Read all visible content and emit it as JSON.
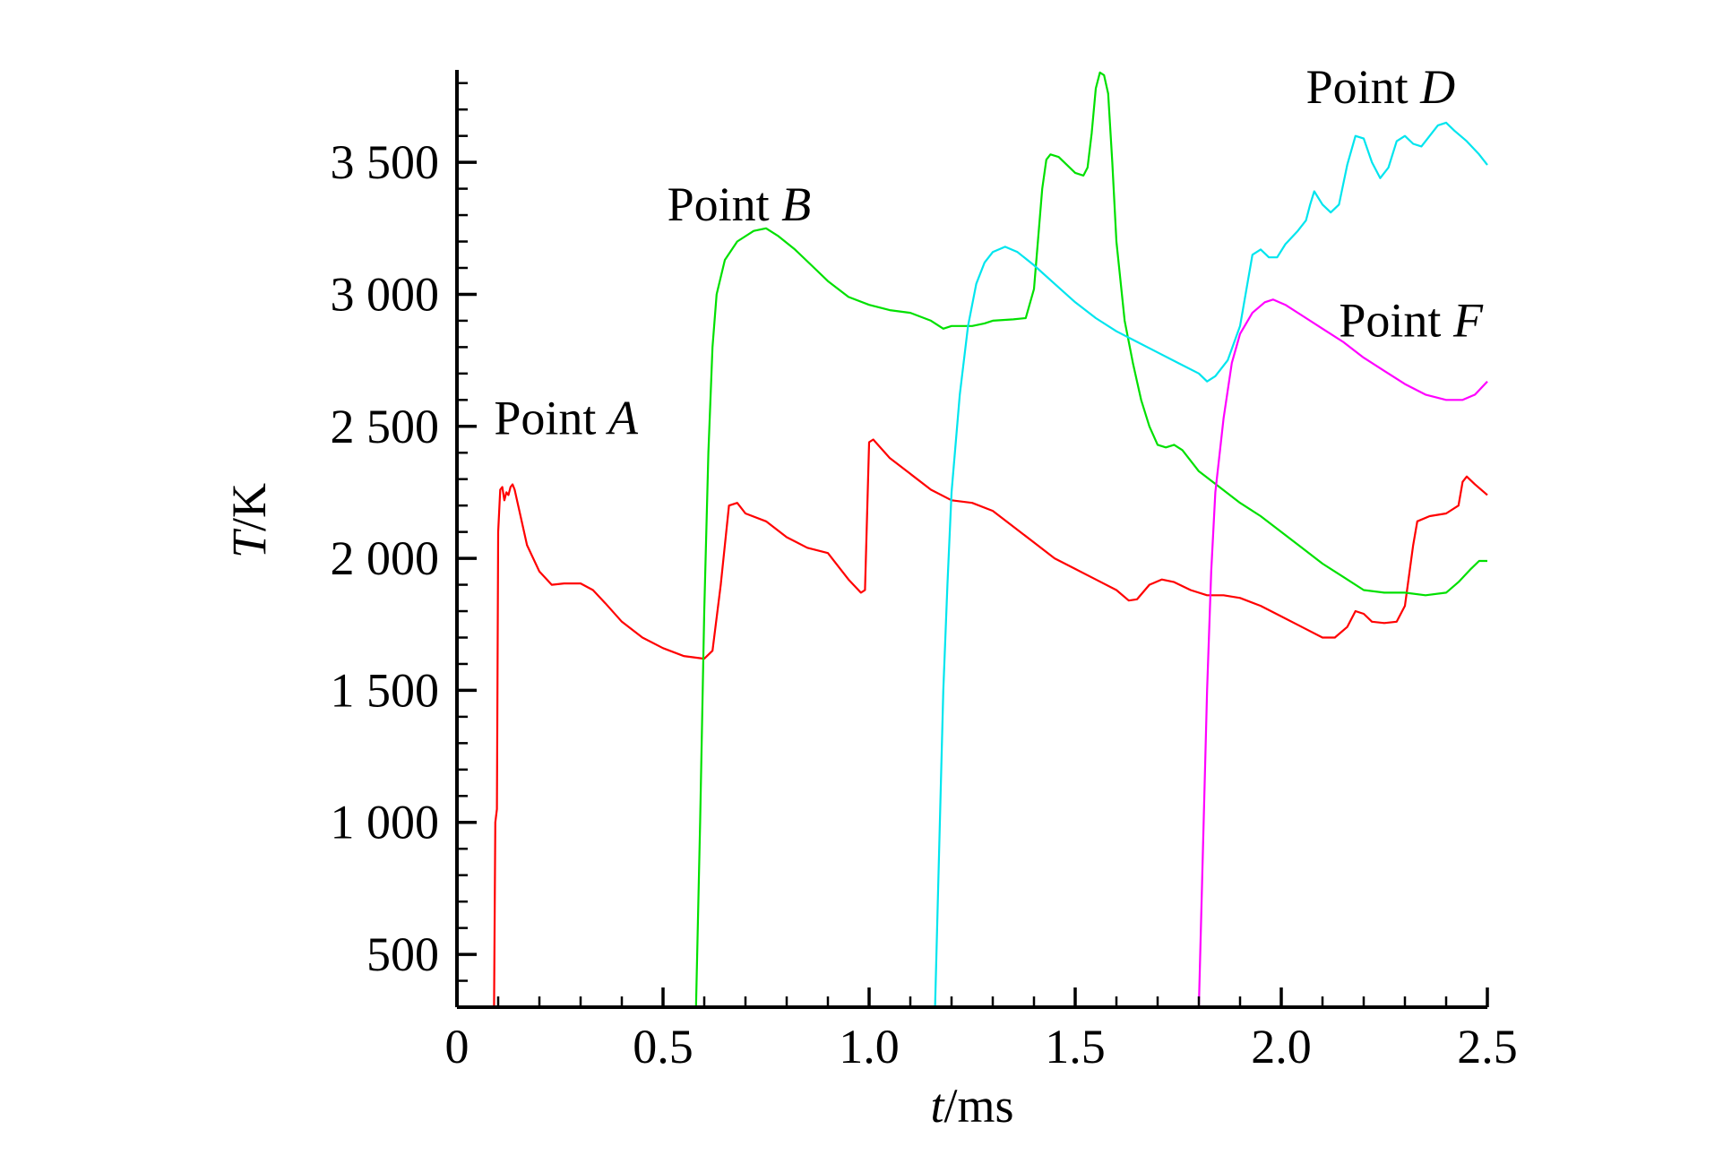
{
  "chart_data": {
    "type": "line",
    "title": "",
    "xlabel": {
      "var": "t",
      "unit": "/ms"
    },
    "ylabel": {
      "var": "T",
      "unit": "/K"
    },
    "xlim": [
      0,
      2.5
    ],
    "ylim": [
      300,
      3850
    ],
    "x_ticks": [
      0,
      0.5,
      1.0,
      1.5,
      2.0,
      2.5
    ],
    "x_tick_labels": [
      "0",
      "0.5",
      "1.0",
      "1.5",
      "2.0",
      "2.5"
    ],
    "y_ticks": [
      500,
      1000,
      1500,
      2000,
      2500,
      3000,
      3500
    ],
    "y_tick_labels": [
      "500",
      "1 000",
      "1 500",
      "2 000",
      "2 500",
      "3 000",
      "3 500"
    ],
    "grid": false,
    "legend": "none",
    "series": [
      {
        "name": "Point A",
        "label_prefix": "Point ",
        "label_letter": "A",
        "color": "#ff0000",
        "label_at": [
          0.09,
          2470
        ],
        "points": [
          [
            0.09,
            300
          ],
          [
            0.093,
            1000
          ],
          [
            0.097,
            1050
          ],
          [
            0.1,
            2100
          ],
          [
            0.105,
            2260
          ],
          [
            0.11,
            2270
          ],
          [
            0.115,
            2220
          ],
          [
            0.12,
            2250
          ],
          [
            0.125,
            2240
          ],
          [
            0.13,
            2270
          ],
          [
            0.135,
            2280
          ],
          [
            0.14,
            2260
          ],
          [
            0.15,
            2190
          ],
          [
            0.17,
            2050
          ],
          [
            0.2,
            1950
          ],
          [
            0.23,
            1900
          ],
          [
            0.26,
            1905
          ],
          [
            0.3,
            1905
          ],
          [
            0.33,
            1880
          ],
          [
            0.36,
            1830
          ],
          [
            0.4,
            1760
          ],
          [
            0.45,
            1700
          ],
          [
            0.5,
            1660
          ],
          [
            0.55,
            1630
          ],
          [
            0.6,
            1620
          ],
          [
            0.62,
            1650
          ],
          [
            0.64,
            1900
          ],
          [
            0.66,
            2200
          ],
          [
            0.68,
            2210
          ],
          [
            0.7,
            2170
          ],
          [
            0.75,
            2140
          ],
          [
            0.8,
            2080
          ],
          [
            0.85,
            2040
          ],
          [
            0.9,
            2020
          ],
          [
            0.95,
            1920
          ],
          [
            0.98,
            1870
          ],
          [
            0.99,
            1880
          ],
          [
            1.0,
            2440
          ],
          [
            1.01,
            2450
          ],
          [
            1.05,
            2380
          ],
          [
            1.1,
            2320
          ],
          [
            1.15,
            2260
          ],
          [
            1.2,
            2220
          ],
          [
            1.25,
            2210
          ],
          [
            1.3,
            2180
          ],
          [
            1.35,
            2120
          ],
          [
            1.4,
            2060
          ],
          [
            1.45,
            2000
          ],
          [
            1.5,
            1960
          ],
          [
            1.55,
            1920
          ],
          [
            1.6,
            1880
          ],
          [
            1.63,
            1840
          ],
          [
            1.65,
            1845
          ],
          [
            1.68,
            1900
          ],
          [
            1.71,
            1920
          ],
          [
            1.74,
            1910
          ],
          [
            1.78,
            1880
          ],
          [
            1.82,
            1860
          ],
          [
            1.86,
            1860
          ],
          [
            1.9,
            1850
          ],
          [
            1.95,
            1820
          ],
          [
            2.0,
            1780
          ],
          [
            2.05,
            1740
          ],
          [
            2.1,
            1700
          ],
          [
            2.13,
            1700
          ],
          [
            2.16,
            1740
          ],
          [
            2.18,
            1800
          ],
          [
            2.2,
            1790
          ],
          [
            2.22,
            1760
          ],
          [
            2.25,
            1755
          ],
          [
            2.28,
            1760
          ],
          [
            2.3,
            1820
          ],
          [
            2.32,
            2050
          ],
          [
            2.33,
            2140
          ],
          [
            2.36,
            2160
          ],
          [
            2.4,
            2170
          ],
          [
            2.43,
            2200
          ],
          [
            2.44,
            2290
          ],
          [
            2.45,
            2310
          ],
          [
            2.47,
            2280
          ],
          [
            2.5,
            2240
          ]
        ]
      },
      {
        "name": "Point B",
        "label_prefix": "Point ",
        "label_letter": "B",
        "color": "#00e000",
        "label_at": [
          0.51,
          3280
        ],
        "points": [
          [
            0.58,
            300
          ],
          [
            0.59,
            1000
          ],
          [
            0.6,
            1800
          ],
          [
            0.61,
            2400
          ],
          [
            0.62,
            2800
          ],
          [
            0.63,
            3000
          ],
          [
            0.65,
            3130
          ],
          [
            0.68,
            3200
          ],
          [
            0.72,
            3240
          ],
          [
            0.75,
            3250
          ],
          [
            0.78,
            3220
          ],
          [
            0.82,
            3170
          ],
          [
            0.86,
            3110
          ],
          [
            0.9,
            3050
          ],
          [
            0.95,
            2990
          ],
          [
            1.0,
            2960
          ],
          [
            1.05,
            2940
          ],
          [
            1.1,
            2930
          ],
          [
            1.15,
            2900
          ],
          [
            1.18,
            2870
          ],
          [
            1.2,
            2880
          ],
          [
            1.25,
            2880
          ],
          [
            1.28,
            2890
          ],
          [
            1.3,
            2900
          ],
          [
            1.35,
            2905
          ],
          [
            1.38,
            2910
          ],
          [
            1.4,
            3020
          ],
          [
            1.42,
            3400
          ],
          [
            1.43,
            3510
          ],
          [
            1.44,
            3530
          ],
          [
            1.46,
            3520
          ],
          [
            1.48,
            3490
          ],
          [
            1.5,
            3460
          ],
          [
            1.52,
            3450
          ],
          [
            1.53,
            3480
          ],
          [
            1.54,
            3610
          ],
          [
            1.55,
            3780
          ],
          [
            1.56,
            3840
          ],
          [
            1.57,
            3830
          ],
          [
            1.58,
            3760
          ],
          [
            1.59,
            3500
          ],
          [
            1.6,
            3200
          ],
          [
            1.62,
            2900
          ],
          [
            1.64,
            2740
          ],
          [
            1.66,
            2600
          ],
          [
            1.68,
            2500
          ],
          [
            1.7,
            2430
          ],
          [
            1.72,
            2420
          ],
          [
            1.74,
            2430
          ],
          [
            1.76,
            2410
          ],
          [
            1.8,
            2330
          ],
          [
            1.85,
            2270
          ],
          [
            1.9,
            2210
          ],
          [
            1.95,
            2160
          ],
          [
            2.0,
            2100
          ],
          [
            2.05,
            2040
          ],
          [
            2.1,
            1980
          ],
          [
            2.15,
            1930
          ],
          [
            2.2,
            1880
          ],
          [
            2.25,
            1870
          ],
          [
            2.3,
            1870
          ],
          [
            2.35,
            1860
          ],
          [
            2.4,
            1870
          ],
          [
            2.43,
            1910
          ],
          [
            2.46,
            1960
          ],
          [
            2.48,
            1990
          ],
          [
            2.5,
            1990
          ]
        ]
      },
      {
        "name": "Point D",
        "label_prefix": "Point ",
        "label_letter": "D",
        "color": "#00e5ee",
        "label_at": [
          2.06,
          3725
        ],
        "points": [
          [
            1.16,
            300
          ],
          [
            1.17,
            900
          ],
          [
            1.18,
            1500
          ],
          [
            1.19,
            1900
          ],
          [
            1.2,
            2250
          ],
          [
            1.22,
            2620
          ],
          [
            1.24,
            2880
          ],
          [
            1.26,
            3040
          ],
          [
            1.28,
            3120
          ],
          [
            1.3,
            3160
          ],
          [
            1.33,
            3180
          ],
          [
            1.36,
            3160
          ],
          [
            1.4,
            3110
          ],
          [
            1.45,
            3040
          ],
          [
            1.5,
            2970
          ],
          [
            1.55,
            2910
          ],
          [
            1.6,
            2860
          ],
          [
            1.65,
            2820
          ],
          [
            1.7,
            2780
          ],
          [
            1.75,
            2740
          ],
          [
            1.8,
            2700
          ],
          [
            1.82,
            2670
          ],
          [
            1.84,
            2690
          ],
          [
            1.87,
            2750
          ],
          [
            1.9,
            2880
          ],
          [
            1.92,
            3060
          ],
          [
            1.93,
            3150
          ],
          [
            1.95,
            3170
          ],
          [
            1.97,
            3140
          ],
          [
            1.99,
            3140
          ],
          [
            2.01,
            3190
          ],
          [
            2.04,
            3240
          ],
          [
            2.06,
            3280
          ],
          [
            2.07,
            3340
          ],
          [
            2.08,
            3390
          ],
          [
            2.1,
            3340
          ],
          [
            2.12,
            3310
          ],
          [
            2.14,
            3340
          ],
          [
            2.16,
            3490
          ],
          [
            2.18,
            3600
          ],
          [
            2.2,
            3590
          ],
          [
            2.22,
            3500
          ],
          [
            2.24,
            3440
          ],
          [
            2.26,
            3480
          ],
          [
            2.28,
            3580
          ],
          [
            2.3,
            3600
          ],
          [
            2.32,
            3570
          ],
          [
            2.34,
            3560
          ],
          [
            2.36,
            3600
          ],
          [
            2.38,
            3640
          ],
          [
            2.4,
            3650
          ],
          [
            2.42,
            3620
          ],
          [
            2.45,
            3580
          ],
          [
            2.48,
            3530
          ],
          [
            2.5,
            3490
          ]
        ]
      },
      {
        "name": "Point F",
        "label_prefix": "Point ",
        "label_letter": "F",
        "color": "#ff00ff",
        "label_at": [
          2.14,
          2840
        ],
        "points": [
          [
            1.8,
            300
          ],
          [
            1.81,
            900
          ],
          [
            1.82,
            1500
          ],
          [
            1.83,
            1950
          ],
          [
            1.84,
            2250
          ],
          [
            1.86,
            2530
          ],
          [
            1.88,
            2740
          ],
          [
            1.9,
            2850
          ],
          [
            1.93,
            2930
          ],
          [
            1.96,
            2970
          ],
          [
            1.98,
            2980
          ],
          [
            2.01,
            2960
          ],
          [
            2.05,
            2920
          ],
          [
            2.1,
            2870
          ],
          [
            2.15,
            2820
          ],
          [
            2.2,
            2760
          ],
          [
            2.25,
            2710
          ],
          [
            2.3,
            2660
          ],
          [
            2.35,
            2620
          ],
          [
            2.4,
            2600
          ],
          [
            2.44,
            2600
          ],
          [
            2.47,
            2620
          ],
          [
            2.5,
            2670
          ]
        ]
      }
    ]
  }
}
